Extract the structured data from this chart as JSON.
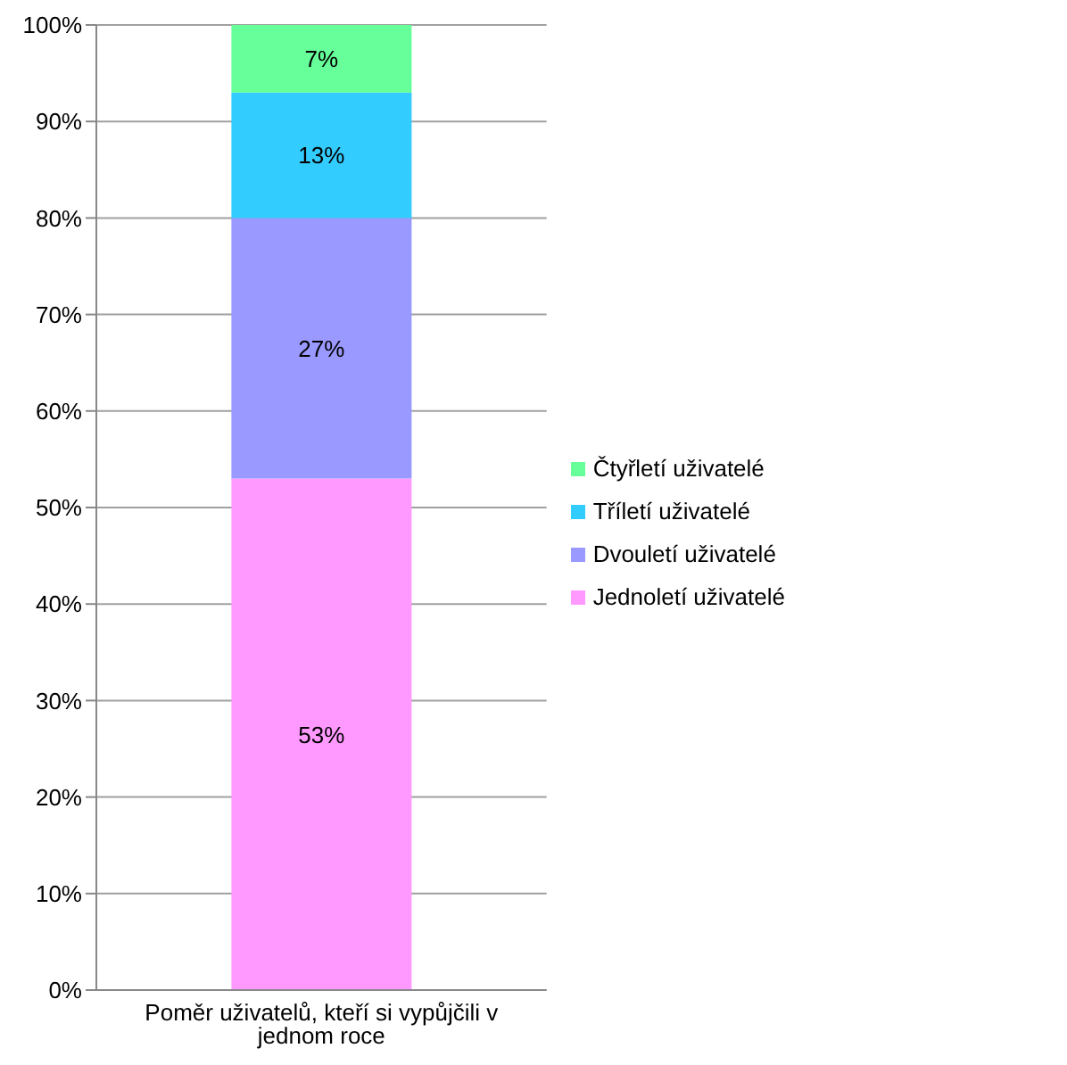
{
  "chart_data": {
    "type": "bar",
    "stacked": true,
    "categories": [
      "Poměr uživatelů, kteří si vypůjčili v jednom roce"
    ],
    "series": [
      {
        "name": "Jednoletí uživatelé",
        "color": "#ff99ff",
        "values": [
          53
        ],
        "value_labels": [
          "53%"
        ]
      },
      {
        "name": "Dvouletí uživatelé",
        "color": "#9999ff",
        "values": [
          27
        ],
        "value_labels": [
          "27%"
        ]
      },
      {
        "name": "Tříletí uživatelé",
        "color": "#33ccff",
        "values": [
          13
        ],
        "value_labels": [
          "13%"
        ]
      },
      {
        "name": "Čtyřletí uživatelé",
        "color": "#66ff99",
        "values": [
          7
        ],
        "value_labels": [
          "7%"
        ]
      }
    ],
    "ylim": [
      0,
      100
    ],
    "yticks": [
      {
        "value": 0,
        "label": "0%"
      },
      {
        "value": 10,
        "label": "10%"
      },
      {
        "value": 20,
        "label": "20%"
      },
      {
        "value": 30,
        "label": "30%"
      },
      {
        "value": 40,
        "label": "40%"
      },
      {
        "value": 50,
        "label": "50%"
      },
      {
        "value": 60,
        "label": "60%"
      },
      {
        "value": 70,
        "label": "70%"
      },
      {
        "value": 80,
        "label": "80%"
      },
      {
        "value": 90,
        "label": "90%"
      },
      {
        "value": 100,
        "label": "100%"
      }
    ],
    "grid": "y",
    "legend": "right"
  }
}
